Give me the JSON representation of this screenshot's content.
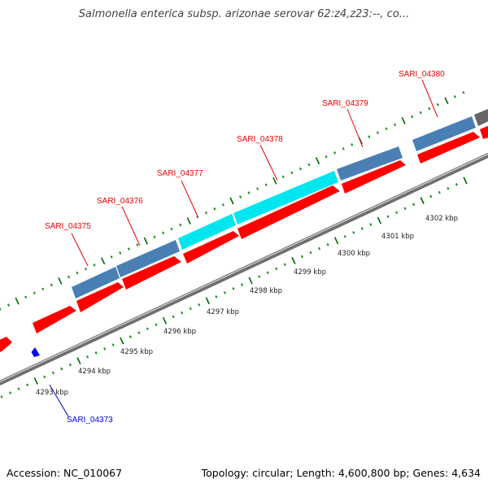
{
  "title": "Salmonella enterica subsp. arizonae serovar 62:z4,z23:--, co...",
  "footer": {
    "accession": "Accession: NC_010067",
    "stats": "Topology: circular; Length: 4,600,800 bp; Genes: 4,634"
  },
  "colors": {
    "forward_cds": "#ff0000",
    "reverse_cds": "#0000ff",
    "gene_feature": "#4a7fb5",
    "highlight_gene": "#00e5ee",
    "dark_feature": "#666666",
    "backbone": "#999999",
    "tick_major": "#008000",
    "label_forward": "#ee0000",
    "label_reverse": "#0000cc"
  },
  "scale_labels": [
    "4293 kbp",
    "4294 kbp",
    "4295 kbp",
    "4296 kbp",
    "4297 kbp",
    "4298 kbp",
    "4299 kbp",
    "4300 kbp",
    "4301 kbp",
    "4302 kbp"
  ],
  "gene_labels": [
    {
      "id": "SARI_04373",
      "strand": "reverse"
    },
    {
      "id": "SARI_04375",
      "strand": "forward"
    },
    {
      "id": "SARI_04376",
      "strand": "forward"
    },
    {
      "id": "SARI_04377",
      "strand": "forward"
    },
    {
      "id": "SARI_04378",
      "strand": "forward"
    },
    {
      "id": "SARI_04379",
      "strand": "forward"
    },
    {
      "id": "SARI_04380",
      "strand": "forward"
    }
  ]
}
